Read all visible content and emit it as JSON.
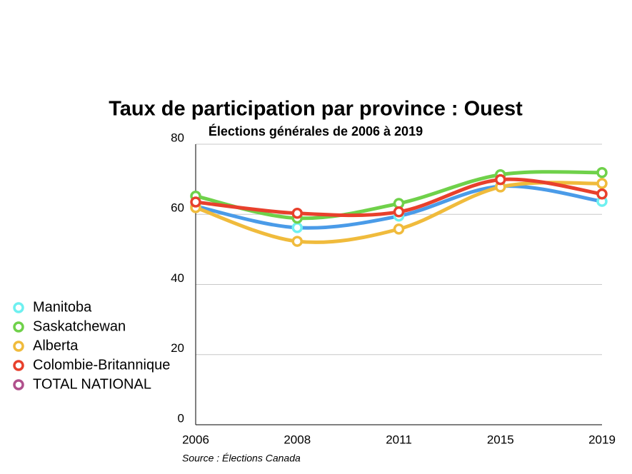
{
  "chart_data": {
    "type": "line",
    "title": "Taux de participation par province : Ouest",
    "subtitle": "Élections générales de 2006 à 2019",
    "source": "Source : Élections Canada",
    "categories": [
      "2006",
      "2008",
      "2011",
      "2015",
      "2019"
    ],
    "series": [
      {
        "name": "Manitoba",
        "color": "#4a9be8",
        "marker_color": "#6ef0f0",
        "values": [
          62.3,
          56.2,
          59.5,
          68.0,
          63.7
        ]
      },
      {
        "name": "Saskatchewan",
        "color": "#6fd14a",
        "marker_color": "#6fd14a",
        "values": [
          65.2,
          58.9,
          63.1,
          71.3,
          71.9
        ]
      },
      {
        "name": "Alberta",
        "color": "#f0bb3c",
        "marker_color": "#f0bb3c",
        "values": [
          61.9,
          52.3,
          55.8,
          67.8,
          68.8
        ]
      },
      {
        "name": "Colombie-Britannique",
        "color": "#e8402c",
        "marker_color": "#e8402c",
        "values": [
          63.5,
          60.3,
          60.7,
          69.9,
          65.8
        ]
      },
      {
        "name": "TOTAL NATIONAL",
        "color": "#b0508c",
        "marker_color": "#b0508c",
        "values": [
          null,
          null,
          null,
          null,
          null
        ]
      }
    ],
    "ylim": [
      0,
      80
    ],
    "yticks": [
      0,
      20,
      40,
      60,
      80
    ],
    "grid": true,
    "legend": "left"
  }
}
